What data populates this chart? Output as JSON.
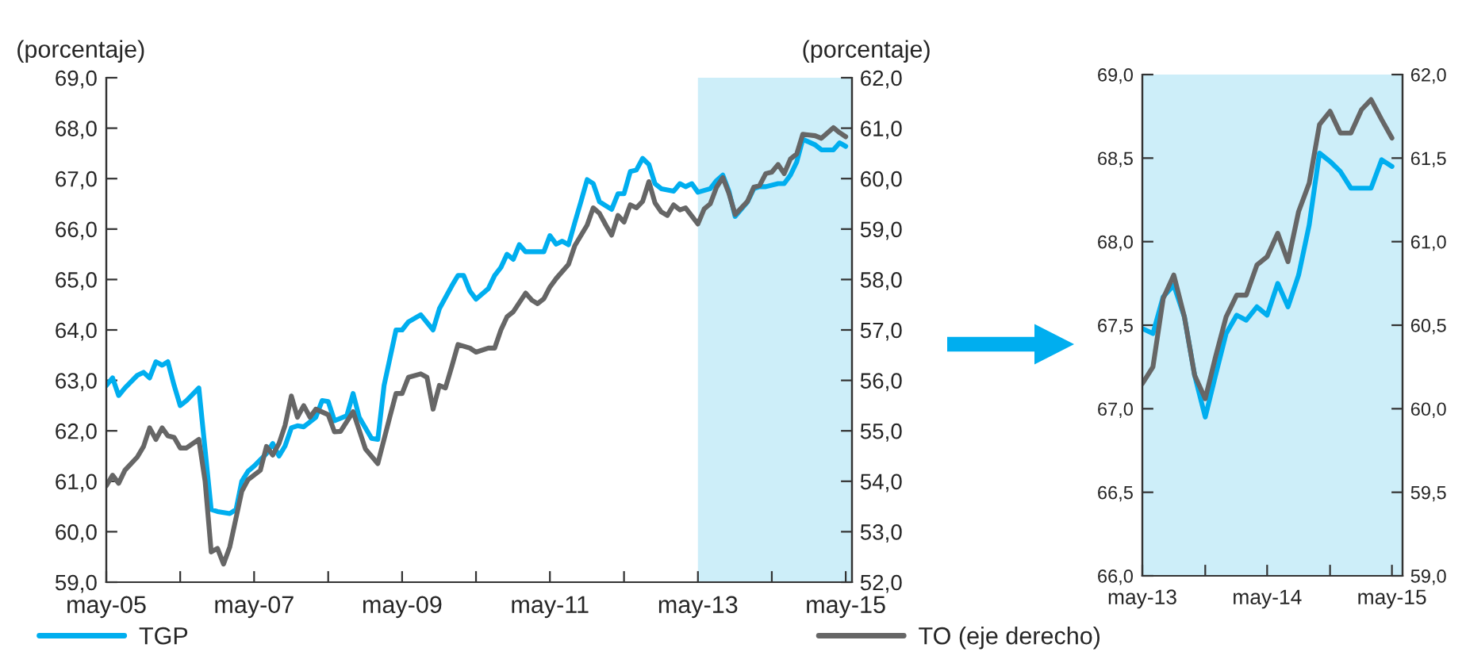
{
  "chart_data": [
    {
      "type": "line",
      "ylabel": "(porcentaje)",
      "y2label": "(porcentaje)",
      "legend": "bottom",
      "grid": false,
      "xlim": [
        "2005-05",
        "2015-06"
      ],
      "xticks": [
        {
          "value": "2005-05",
          "label": "may-05"
        },
        {
          "value": "2006-05",
          "label": null
        },
        {
          "value": "2007-05",
          "label": "may-07"
        },
        {
          "value": "2008-05",
          "label": null
        },
        {
          "value": "2009-05",
          "label": "may-09"
        },
        {
          "value": "2010-05",
          "label": null
        },
        {
          "value": "2011-05",
          "label": "may-11"
        },
        {
          "value": "2012-05",
          "label": null
        },
        {
          "value": "2013-05",
          "label": "may-13"
        },
        {
          "value": "2014-05",
          "label": null
        },
        {
          "value": "2015-05",
          "label": "may-15"
        }
      ],
      "ylim": [
        59,
        69
      ],
      "yticks": [
        {
          "value": 59,
          "label": "59,0"
        },
        {
          "value": 60,
          "label": "60,0"
        },
        {
          "value": 61,
          "label": "61,0"
        },
        {
          "value": 62,
          "label": "62,0"
        },
        {
          "value": 63,
          "label": "63,0"
        },
        {
          "value": 64,
          "label": "64,0"
        },
        {
          "value": 65,
          "label": "65,0"
        },
        {
          "value": 66,
          "label": "66,0"
        },
        {
          "value": 67,
          "label": "67,0"
        },
        {
          "value": 68,
          "label": "68,0"
        },
        {
          "value": 69,
          "label": "69,0"
        }
      ],
      "y2lim": [
        52,
        62
      ],
      "y2ticks": [
        {
          "value": 52,
          "label": "52,0"
        },
        {
          "value": 53,
          "label": "53,0"
        },
        {
          "value": 54,
          "label": "54,0"
        },
        {
          "value": 55,
          "label": "55,0"
        },
        {
          "value": 56,
          "label": "56,0"
        },
        {
          "value": 57,
          "label": "57,0"
        },
        {
          "value": 58,
          "label": "58,0"
        },
        {
          "value": 59,
          "label": "59,0"
        },
        {
          "value": 60,
          "label": "60,0"
        },
        {
          "value": 61,
          "label": "61,0"
        },
        {
          "value": 62,
          "label": "62,0"
        }
      ],
      "bands": [
        {
          "axis": "x",
          "from": "2013-05",
          "to": "2015-06",
          "color": "#cdeef9"
        }
      ],
      "series": [
        {
          "name": "TGP",
          "color": "#00aeef",
          "x": [
            "2005-05",
            "2005-06",
            "2005-07",
            "2005-08",
            "2005-10",
            "2005-11",
            "2005-12",
            "2006-01",
            "2006-02",
            "2006-03",
            "2006-04",
            "2006-05",
            "2006-06",
            "2006-08",
            "2006-10",
            "2006-11",
            "2007-01",
            "2007-02",
            "2007-03",
            "2007-04",
            "2007-05",
            "2007-07",
            "2007-08",
            "2007-09",
            "2007-10",
            "2007-11",
            "2007-12",
            "2008-01",
            "2008-03",
            "2008-04",
            "2008-05",
            "2008-06",
            "2008-08",
            "2008-09",
            "2008-10",
            "2008-12",
            "2009-01",
            "2009-02",
            "2009-04",
            "2009-05",
            "2009-06",
            "2009-08",
            "2009-10",
            "2009-11",
            "2010-01",
            "2010-02",
            "2010-03",
            "2010-04",
            "2010-05",
            "2010-07",
            "2010-08",
            "2010-09",
            "2010-10",
            "2010-11",
            "2010-12",
            "2011-01",
            "2011-02",
            "2011-04",
            "2011-05",
            "2011-06",
            "2011-07",
            "2011-08",
            "2011-09",
            "2011-10",
            "2011-11",
            "2011-12",
            "2012-01",
            "2012-03",
            "2012-04",
            "2012-05",
            "2012-06",
            "2012-07",
            "2012-08",
            "2012-09",
            "2012-10",
            "2012-11",
            "2013-01",
            "2013-02",
            "2013-03",
            "2013-04",
            "2013-05",
            "2013-07",
            "2013-08",
            "2013-09",
            "2013-10",
            "2013-11",
            "2014-01",
            "2014-02",
            "2014-03",
            "2014-04",
            "2014-06",
            "2014-07",
            "2014-08",
            "2014-09",
            "2014-10",
            "2014-12",
            "2015-01",
            "2015-03",
            "2015-04",
            "2015-05"
          ],
          "values": [
            62.9,
            63.05,
            62.7,
            62.85,
            63.1,
            63.16,
            63.05,
            63.37,
            63.3,
            63.37,
            62.9,
            62.5,
            62.6,
            62.85,
            60.44,
            60.4,
            60.36,
            60.44,
            61.0,
            61.2,
            61.3,
            61.55,
            61.75,
            61.5,
            61.7,
            62.06,
            62.1,
            62.08,
            62.27,
            62.6,
            62.58,
            62.2,
            62.3,
            62.74,
            62.27,
            61.85,
            61.83,
            62.9,
            64.0,
            64.0,
            64.16,
            64.3,
            64.0,
            64.42,
            64.87,
            65.08,
            65.08,
            64.77,
            64.61,
            64.82,
            65.08,
            65.24,
            65.5,
            65.4,
            65.69,
            65.55,
            65.55,
            65.55,
            65.87,
            65.7,
            65.76,
            65.69,
            66.13,
            66.54,
            66.98,
            66.9,
            66.54,
            66.39,
            66.7,
            66.7,
            67.14,
            67.17,
            67.4,
            67.28,
            66.9,
            66.8,
            66.75,
            66.9,
            66.84,
            66.9,
            66.73,
            66.8,
            66.96,
            67.07,
            66.75,
            66.25,
            66.54,
            66.8,
            66.84,
            66.84,
            66.9,
            66.9,
            67.07,
            67.33,
            67.78,
            67.67,
            67.57,
            67.57,
            67.71,
            67.64
          ]
        },
        {
          "name": "TO (eje derecho)",
          "color": "#666666",
          "axis": "y2",
          "x": [
            "2005-05",
            "2005-06",
            "2005-07",
            "2005-08",
            "2005-10",
            "2005-11",
            "2005-12",
            "2006-01",
            "2006-02",
            "2006-03",
            "2006-04",
            "2006-05",
            "2006-06",
            "2006-08",
            "2006-09",
            "2006-10",
            "2006-11",
            "2006-12",
            "2007-01",
            "2007-03",
            "2007-04",
            "2007-06",
            "2007-07",
            "2007-08",
            "2007-09",
            "2007-10",
            "2007-11",
            "2007-12",
            "2008-01",
            "2008-02",
            "2008-03",
            "2008-05",
            "2008-06",
            "2008-07",
            "2008-09",
            "2008-11",
            "2009-01",
            "2009-03",
            "2009-04",
            "2009-05",
            "2009-06",
            "2009-08",
            "2009-09",
            "2009-10",
            "2009-11",
            "2009-12",
            "2010-01",
            "2010-02",
            "2010-04",
            "2010-05",
            "2010-07",
            "2010-08",
            "2010-09",
            "2010-10",
            "2010-11",
            "2011-01",
            "2011-02",
            "2011-03",
            "2011-04",
            "2011-05",
            "2011-06",
            "2011-08",
            "2011-09",
            "2011-11",
            "2011-12",
            "2012-01",
            "2012-02",
            "2012-03",
            "2012-04",
            "2012-05",
            "2012-06",
            "2012-07",
            "2012-08",
            "2012-09",
            "2012-10",
            "2012-11",
            "2012-12",
            "2013-01",
            "2013-02",
            "2013-03",
            "2013-05",
            "2013-06",
            "2013-07",
            "2013-08",
            "2013-09",
            "2013-10",
            "2013-11",
            "2014-01",
            "2014-02",
            "2014-03",
            "2014-04",
            "2014-05",
            "2014-06",
            "2014-07",
            "2014-08",
            "2014-09",
            "2014-10",
            "2014-12",
            "2015-01",
            "2015-03",
            "2015-04",
            "2015-05"
          ],
          "values": [
            53.91,
            54.12,
            53.96,
            54.22,
            54.48,
            54.69,
            55.06,
            54.83,
            55.06,
            54.9,
            54.87,
            54.66,
            54.66,
            54.83,
            54.0,
            52.6,
            52.67,
            52.36,
            52.7,
            53.8,
            54.03,
            54.22,
            54.69,
            54.52,
            54.75,
            55.11,
            55.69,
            55.27,
            55.5,
            55.27,
            55.43,
            55.32,
            54.98,
            54.99,
            55.38,
            54.64,
            54.35,
            55.27,
            55.74,
            55.74,
            56.06,
            56.13,
            56.06,
            55.43,
            55.9,
            55.85,
            56.27,
            56.71,
            56.64,
            56.56,
            56.64,
            56.64,
            57.0,
            57.26,
            57.36,
            57.73,
            57.59,
            57.52,
            57.62,
            57.85,
            58.02,
            58.3,
            58.67,
            59.08,
            59.42,
            59.31,
            59.08,
            58.88,
            59.27,
            59.14,
            59.48,
            59.42,
            59.55,
            59.94,
            59.52,
            59.34,
            59.27,
            59.48,
            59.38,
            59.42,
            59.1,
            59.4,
            59.5,
            59.83,
            60.02,
            59.71,
            59.29,
            59.55,
            59.83,
            59.86,
            60.1,
            60.13,
            60.28,
            60.1,
            60.39,
            60.49,
            60.88,
            60.85,
            60.8,
            61.01,
            60.91,
            60.83
          ]
        }
      ]
    },
    {
      "type": "line",
      "grid": false,
      "xlim": [
        "2013-05",
        "2015-06"
      ],
      "xticks": [
        {
          "value": "2013-05",
          "label": "may-13"
        },
        {
          "value": "2013-11",
          "label": null
        },
        {
          "value": "2014-05",
          "label": "may-14"
        },
        {
          "value": "2014-11",
          "label": null
        },
        {
          "value": "2015-05",
          "label": "may-15"
        }
      ],
      "ylim": [
        66,
        69
      ],
      "yticks": [
        {
          "value": 66,
          "label": "66,0"
        },
        {
          "value": 66.5,
          "label": "66,5"
        },
        {
          "value": 67,
          "label": "67,0"
        },
        {
          "value": 67.5,
          "label": "67,5"
        },
        {
          "value": 68,
          "label": "68,0"
        },
        {
          "value": 68.5,
          "label": "68,5"
        },
        {
          "value": 69,
          "label": "69,0"
        }
      ],
      "y2lim": [
        59,
        62
      ],
      "y2ticks": [
        {
          "value": 59,
          "label": "59,0"
        },
        {
          "value": 59.5,
          "label": "59,5"
        },
        {
          "value": 60,
          "label": "60,0"
        },
        {
          "value": 60.5,
          "label": "60,5"
        },
        {
          "value": 61,
          "label": "61,0"
        },
        {
          "value": 61.5,
          "label": "61,5"
        },
        {
          "value": 62,
          "label": "62,0"
        }
      ],
      "bands": [
        {
          "axis": "x",
          "from": "2013-05",
          "to": "2015-06",
          "color": "#cdeef9"
        }
      ],
      "series": [
        {
          "color": "#00aeef",
          "x": [
            "2013-05",
            "2013-06",
            "2013-07",
            "2013-08",
            "2013-09",
            "2013-10",
            "2013-11",
            "2013-12",
            "2014-01",
            "2014-02",
            "2014-03",
            "2014-04",
            "2014-05",
            "2014-06",
            "2014-07",
            "2014-08",
            "2014-09",
            "2014-10",
            "2014-11",
            "2014-12",
            "2015-01",
            "2015-02",
            "2015-03",
            "2015-04",
            "2015-05"
          ],
          "values": [
            67.48,
            67.45,
            67.67,
            67.74,
            67.55,
            67.2,
            66.95,
            67.2,
            67.45,
            67.56,
            67.53,
            67.61,
            67.56,
            67.75,
            67.61,
            67.8,
            68.1,
            68.53,
            68.48,
            68.42,
            68.32,
            68.32,
            68.32,
            68.49,
            68.45
          ]
        },
        {
          "color": "#666666",
          "axis": "y2",
          "x": [
            "2013-05",
            "2013-06",
            "2013-07",
            "2013-08",
            "2013-09",
            "2013-10",
            "2013-11",
            "2013-12",
            "2014-01",
            "2014-02",
            "2014-03",
            "2014-04",
            "2014-05",
            "2014-06",
            "2014-07",
            "2014-08",
            "2014-09",
            "2014-10",
            "2014-11",
            "2014-12",
            "2015-01",
            "2015-02",
            "2015-03",
            "2015-04",
            "2015-05"
          ],
          "values": [
            60.15,
            60.25,
            60.66,
            60.8,
            60.55,
            60.2,
            60.06,
            60.31,
            60.55,
            60.68,
            60.68,
            60.86,
            60.91,
            61.05,
            60.88,
            61.18,
            61.35,
            61.7,
            61.78,
            61.65,
            61.65,
            61.79,
            61.85,
            61.73,
            61.62
          ]
        }
      ]
    }
  ]
}
